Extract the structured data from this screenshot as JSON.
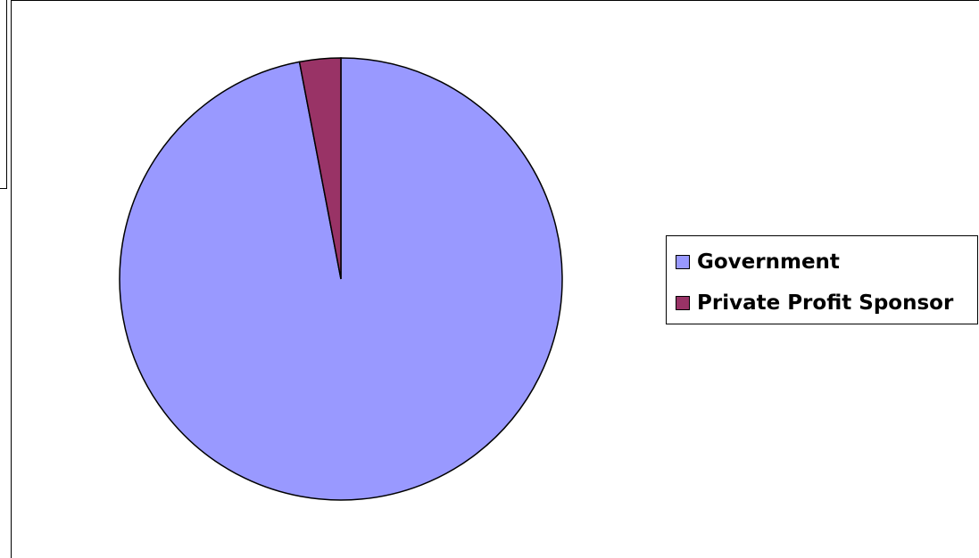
{
  "chart_data": {
    "type": "pie",
    "title": "",
    "series": [
      {
        "name": "Government",
        "value": 97,
        "color": "#9999FF"
      },
      {
        "name": "Private Profit Sponsor",
        "value": 3,
        "color": "#993366"
      }
    ],
    "start_angle_deg": 0,
    "direction": "clockwise",
    "legend_position": "right"
  },
  "legend": {
    "items": [
      {
        "label": "Government",
        "color": "#9999FF"
      },
      {
        "label": "Private Profit Sponsor",
        "color": "#993366"
      }
    ]
  }
}
